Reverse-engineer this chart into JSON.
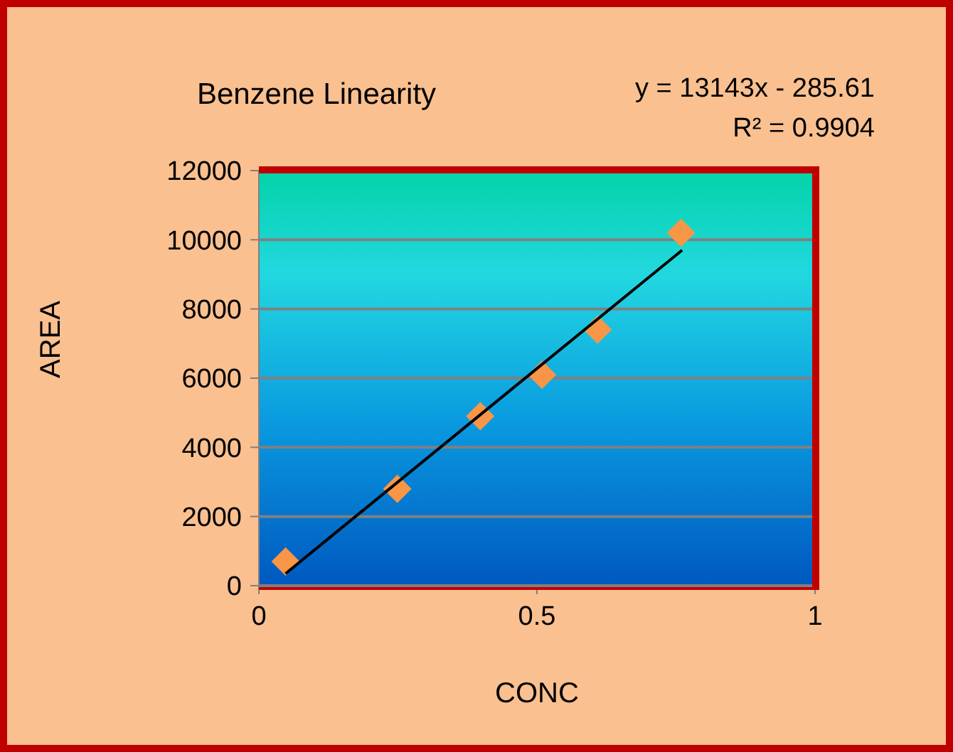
{
  "chart_data": {
    "type": "scatter",
    "title": "Benzene Linearity",
    "xlabel": "CONC",
    "ylabel": "AREA",
    "annotations": [
      "y = 13143x - 285.61",
      "R² = 0.9904"
    ],
    "series": [
      {
        "color": "#f79646",
        "x": [
          0.048,
          0.249,
          0.398,
          0.509,
          0.609,
          0.759
        ],
        "values": [
          700,
          2800,
          4900,
          6100,
          7400,
          10200
        ]
      },
      {
        "type": "line",
        "color": "#000000",
        "x": [
          0.048,
          0.761
        ],
        "values": [
          350,
          9700
        ],
        "marker": "none"
      }
    ],
    "marker": "diamond",
    "xlim": [
      0,
      1
    ],
    "xticks": [
      0,
      0.5,
      1
    ],
    "ylim": [
      0,
      12000
    ],
    "yticks": [
      0,
      2000,
      4000,
      6000,
      8000,
      10000,
      12000
    ],
    "grid": "y"
  }
}
